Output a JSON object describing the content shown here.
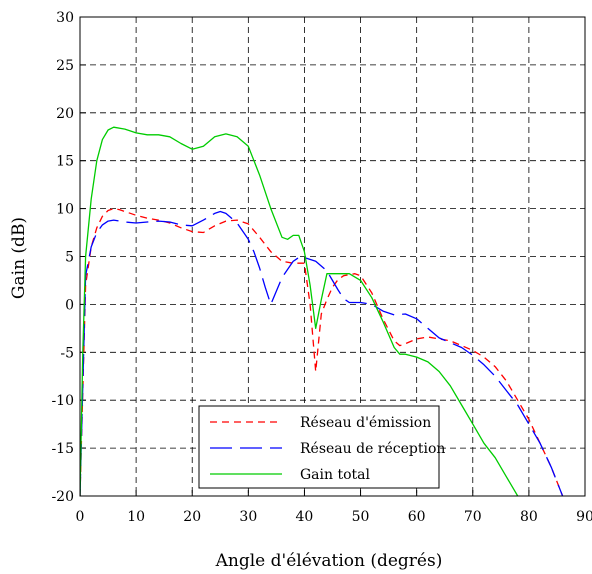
{
  "chart_data": {
    "type": "line",
    "title": "",
    "xlabel": "Angle d'élévation (degrés)",
    "ylabel": "Gain (dB)",
    "xlim": [
      0,
      90
    ],
    "ylim": [
      -20,
      30
    ],
    "xticks": [
      "0",
      "10",
      "20",
      "30",
      "40",
      "50",
      "60",
      "70",
      "80",
      "90"
    ],
    "yticks": [
      "30",
      "25",
      "20",
      "15",
      "10",
      "5",
      "0",
      "-5",
      "-10",
      "-15",
      "-20"
    ],
    "grid": true,
    "grid_style": "dashed",
    "legend": {
      "placement": "bottom-center"
    },
    "series": [
      {
        "name": "Réseau d'émission",
        "color": "#ff0000",
        "dash": "dashed",
        "x": [
          0,
          1,
          2,
          3,
          4,
          5,
          6,
          7,
          8,
          10,
          12,
          14,
          16,
          18,
          20,
          22,
          24,
          26,
          28,
          30,
          32,
          34,
          36,
          38,
          40,
          41,
          42,
          43,
          44,
          45,
          46,
          47,
          48,
          49,
          50,
          52,
          54,
          56,
          57,
          58,
          60,
          62,
          64,
          66,
          68,
          70,
          72,
          74,
          76,
          78,
          80,
          82,
          84,
          86,
          87
        ],
        "y": [
          -20,
          2,
          6,
          8,
          9.2,
          9.8,
          10,
          9.9,
          9.7,
          9.3,
          9,
          8.8,
          8.5,
          8,
          7.6,
          7.5,
          8.2,
          8.7,
          8.8,
          8.4,
          7,
          5.5,
          4.5,
          4.3,
          4.3,
          0,
          -7,
          -1,
          0.5,
          1.8,
          2.6,
          3,
          3.1,
          3.2,
          3,
          1.2,
          -1.5,
          -3.8,
          -4.3,
          -4.1,
          -3.6,
          -3.4,
          -3.6,
          -3.8,
          -4.3,
          -4.8,
          -5.5,
          -6.5,
          -8,
          -10,
          -12,
          -14.5,
          -17,
          -20,
          -21
        ]
      },
      {
        "name": "Réseau de réception",
        "color": "#0000ff",
        "dash": "dashed",
        "x": [
          0,
          1,
          2,
          3,
          4,
          5,
          6,
          8,
          10,
          12,
          14,
          16,
          18,
          20,
          22,
          24,
          25,
          26,
          28,
          30,
          31,
          32,
          33,
          34,
          36,
          38,
          39,
          40,
          42,
          44,
          46,
          47,
          48,
          49,
          50,
          52,
          54,
          56,
          58,
          60,
          62,
          64,
          66,
          68,
          70,
          72,
          74,
          76,
          78,
          80,
          82,
          84,
          86
        ],
        "y": [
          -20,
          3,
          6,
          7.5,
          8.3,
          8.7,
          8.8,
          8.6,
          8.5,
          8.6,
          8.7,
          8.6,
          8.3,
          8.2,
          8.8,
          9.5,
          9.7,
          9.5,
          8.5,
          6.8,
          5.5,
          3.8,
          1.8,
          0,
          2.8,
          4.5,
          4.9,
          4.9,
          4.5,
          3.5,
          1.5,
          0.6,
          0.2,
          0.2,
          0.2,
          0,
          -0.7,
          -1.1,
          -1,
          -1.5,
          -2.5,
          -3.5,
          -4,
          -4.5,
          -5.3,
          -6.3,
          -7.5,
          -9,
          -10.5,
          -12.5,
          -14.5,
          -17,
          -20
        ]
      },
      {
        "name": "Gain total",
        "color": "#00cc00",
        "dash": "solid",
        "x": [
          0,
          0.5,
          1,
          2,
          3,
          4,
          5,
          6,
          8,
          10,
          12,
          14,
          16,
          18,
          20,
          22,
          24,
          26,
          28,
          30,
          32,
          34,
          36,
          37,
          38,
          39,
          40,
          41,
          42,
          43,
          44,
          46,
          48,
          50,
          52,
          54,
          56,
          57,
          58,
          60,
          62,
          64,
          66,
          68,
          70,
          72,
          74,
          76,
          78
        ],
        "y": [
          -20,
          -5,
          5,
          11,
          15,
          17.2,
          18.2,
          18.5,
          18.3,
          17.9,
          17.7,
          17.7,
          17.5,
          16.8,
          16.2,
          16.5,
          17.5,
          17.8,
          17.5,
          16.5,
          13.5,
          10,
          7,
          6.8,
          7.2,
          7.2,
          5.5,
          2,
          -2.5,
          0.5,
          3.2,
          3.2,
          3.2,
          2.5,
          0.7,
          -1.8,
          -4.5,
          -5.2,
          -5.2,
          -5.5,
          -6,
          -7,
          -8.5,
          -10.5,
          -12.5,
          -14.5,
          -16,
          -18,
          -20
        ]
      }
    ]
  }
}
